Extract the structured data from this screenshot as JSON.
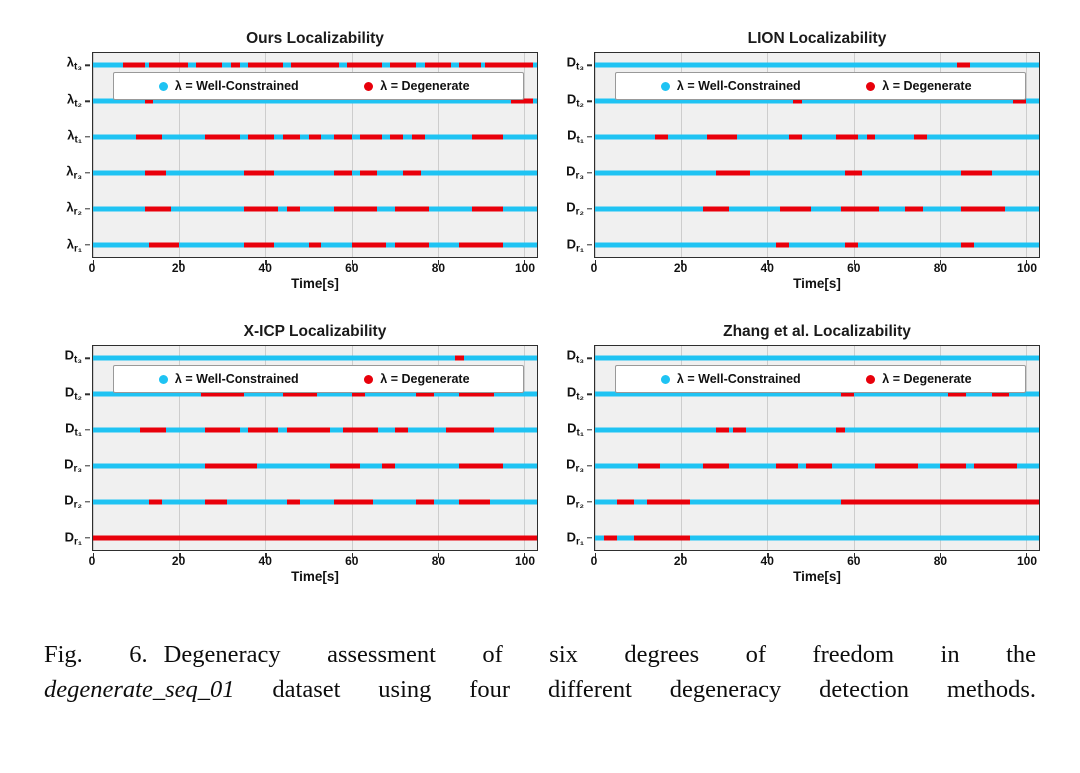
{
  "colors": {
    "well_constrained": "#1fc3f3",
    "degenerate": "#e8000b",
    "plot_background": "#f0f0f0",
    "gridline": "#cdcdcd"
  },
  "caption": {
    "fig_label": "Fig. 6.",
    "text_before_italic": "Degeneracy assessment of six degrees of freedom in the",
    "italic_term": "degenerate_seq_01",
    "text_after_italic": "dataset using four different degeneracy detection methods."
  },
  "chart_data": [
    {
      "type": "timeline",
      "title": "Ours Localizability",
      "xlabel": "Time[s]",
      "xticks": [
        0,
        20,
        40,
        60,
        80,
        100
      ],
      "xlim": [
        0,
        103
      ],
      "legend": [
        "λ = Well-Constrained",
        "λ = Degenerate"
      ],
      "legend_colors": [
        "#1fc3f3",
        "#e8000b"
      ],
      "rows": [
        {
          "label": "λ",
          "sub": "t₃",
          "degenerate_intervals": [
            [
              7,
              12
            ],
            [
              13,
              22
            ],
            [
              24,
              30
            ],
            [
              32,
              34
            ],
            [
              36,
              44
            ],
            [
              46,
              57
            ],
            [
              59,
              67
            ],
            [
              69,
              75
            ],
            [
              77,
              83
            ],
            [
              85,
              90
            ],
            [
              91,
              102
            ]
          ]
        },
        {
          "label": "λ",
          "sub": "t₂",
          "degenerate_intervals": [
            [
              12,
              14
            ],
            [
              97,
              102
            ]
          ]
        },
        {
          "label": "λ",
          "sub": "t₁",
          "degenerate_intervals": [
            [
              10,
              16
            ],
            [
              26,
              34
            ],
            [
              36,
              42
            ],
            [
              44,
              48
            ],
            [
              50,
              53
            ],
            [
              56,
              60
            ],
            [
              62,
              67
            ],
            [
              69,
              72
            ],
            [
              74,
              77
            ],
            [
              88,
              95
            ]
          ]
        },
        {
          "label": "λ",
          "sub": "r₃",
          "degenerate_intervals": [
            [
              12,
              17
            ],
            [
              35,
              42
            ],
            [
              56,
              60
            ],
            [
              62,
              66
            ],
            [
              72,
              76
            ]
          ]
        },
        {
          "label": "λ",
          "sub": "r₂",
          "degenerate_intervals": [
            [
              12,
              18
            ],
            [
              35,
              43
            ],
            [
              45,
              48
            ],
            [
              56,
              66
            ],
            [
              70,
              78
            ],
            [
              88,
              95
            ]
          ]
        },
        {
          "label": "λ",
          "sub": "r₁",
          "degenerate_intervals": [
            [
              13,
              20
            ],
            [
              35,
              42
            ],
            [
              50,
              53
            ],
            [
              60,
              68
            ],
            [
              70,
              78
            ],
            [
              85,
              95
            ]
          ]
        }
      ]
    },
    {
      "type": "timeline",
      "title": "LION Localizability",
      "xlabel": "Time[s]",
      "xticks": [
        0,
        20,
        40,
        60,
        80,
        100
      ],
      "xlim": [
        0,
        103
      ],
      "legend": [
        "λ = Well-Constrained",
        "λ = Degenerate"
      ],
      "legend_colors": [
        "#1fc3f3",
        "#e8000b"
      ],
      "rows": [
        {
          "label": "D",
          "sub": "t₃",
          "degenerate_intervals": [
            [
              84,
              87
            ]
          ]
        },
        {
          "label": "D",
          "sub": "t₂",
          "degenerate_intervals": [
            [
              46,
              48
            ],
            [
              97,
              100
            ]
          ]
        },
        {
          "label": "D",
          "sub": "t₁",
          "degenerate_intervals": [
            [
              14,
              17
            ],
            [
              26,
              33
            ],
            [
              45,
              48
            ],
            [
              56,
              61
            ],
            [
              63,
              65
            ],
            [
              74,
              77
            ]
          ]
        },
        {
          "label": "D",
          "sub": "r₃",
          "degenerate_intervals": [
            [
              28,
              36
            ],
            [
              58,
              62
            ],
            [
              85,
              92
            ]
          ]
        },
        {
          "label": "D",
          "sub": "r₂",
          "degenerate_intervals": [
            [
              25,
              31
            ],
            [
              43,
              50
            ],
            [
              57,
              66
            ],
            [
              72,
              76
            ],
            [
              85,
              95
            ]
          ]
        },
        {
          "label": "D",
          "sub": "r₁",
          "degenerate_intervals": [
            [
              42,
              45
            ],
            [
              58,
              61
            ],
            [
              85,
              88
            ]
          ]
        }
      ]
    },
    {
      "type": "timeline",
      "title": "X-ICP Localizability",
      "xlabel": "Time[s]",
      "xticks": [
        0,
        20,
        40,
        60,
        80,
        100
      ],
      "xlim": [
        0,
        103
      ],
      "legend": [
        "λ = Well-Constrained",
        "λ = Degenerate"
      ],
      "legend_colors": [
        "#1fc3f3",
        "#e8000b"
      ],
      "rows": [
        {
          "label": "D",
          "sub": "t₃",
          "degenerate_intervals": [
            [
              84,
              86
            ]
          ]
        },
        {
          "label": "D",
          "sub": "t₂",
          "degenerate_intervals": [
            [
              25,
              35
            ],
            [
              44,
              52
            ],
            [
              60,
              63
            ],
            [
              75,
              79
            ],
            [
              85,
              93
            ]
          ]
        },
        {
          "label": "D",
          "sub": "t₁",
          "degenerate_intervals": [
            [
              11,
              17
            ],
            [
              26,
              34
            ],
            [
              36,
              43
            ],
            [
              45,
              55
            ],
            [
              58,
              66
            ],
            [
              70,
              73
            ],
            [
              82,
              93
            ]
          ]
        },
        {
          "label": "D",
          "sub": "r₃",
          "degenerate_intervals": [
            [
              26,
              38
            ],
            [
              55,
              62
            ],
            [
              67,
              70
            ],
            [
              85,
              95
            ]
          ]
        },
        {
          "label": "D",
          "sub": "r₂",
          "degenerate_intervals": [
            [
              13,
              16
            ],
            [
              26,
              31
            ],
            [
              45,
              48
            ],
            [
              56,
              65
            ],
            [
              75,
              79
            ],
            [
              85,
              92
            ]
          ]
        },
        {
          "label": "D",
          "sub": "r₁",
          "degenerate_intervals": [
            [
              0,
              103
            ]
          ]
        }
      ]
    },
    {
      "type": "timeline",
      "title": "Zhang et al. Localizability",
      "xlabel": "Time[s]",
      "xticks": [
        0,
        20,
        40,
        60,
        80,
        100
      ],
      "xlim": [
        0,
        103
      ],
      "legend": [
        "λ = Well-Constrained",
        "λ = Degenerate"
      ],
      "legend_colors": [
        "#1fc3f3",
        "#e8000b"
      ],
      "rows": [
        {
          "label": "D",
          "sub": "t₃",
          "degenerate_intervals": []
        },
        {
          "label": "D",
          "sub": "t₂",
          "degenerate_intervals": [
            [
              57,
              60
            ],
            [
              82,
              86
            ],
            [
              92,
              96
            ]
          ]
        },
        {
          "label": "D",
          "sub": "t₁",
          "degenerate_intervals": [
            [
              28,
              31
            ],
            [
              32,
              35
            ],
            [
              56,
              58
            ]
          ]
        },
        {
          "label": "D",
          "sub": "r₃",
          "degenerate_intervals": [
            [
              10,
              15
            ],
            [
              25,
              31
            ],
            [
              42,
              47
            ],
            [
              49,
              55
            ],
            [
              65,
              75
            ],
            [
              80,
              86
            ],
            [
              88,
              98
            ]
          ]
        },
        {
          "label": "D",
          "sub": "r₂",
          "degenerate_intervals": [
            [
              5,
              9
            ],
            [
              12,
              22
            ],
            [
              57,
              103
            ]
          ]
        },
        {
          "label": "D",
          "sub": "r₁",
          "degenerate_intervals": [
            [
              2,
              5
            ],
            [
              9,
              22
            ]
          ]
        }
      ]
    }
  ]
}
